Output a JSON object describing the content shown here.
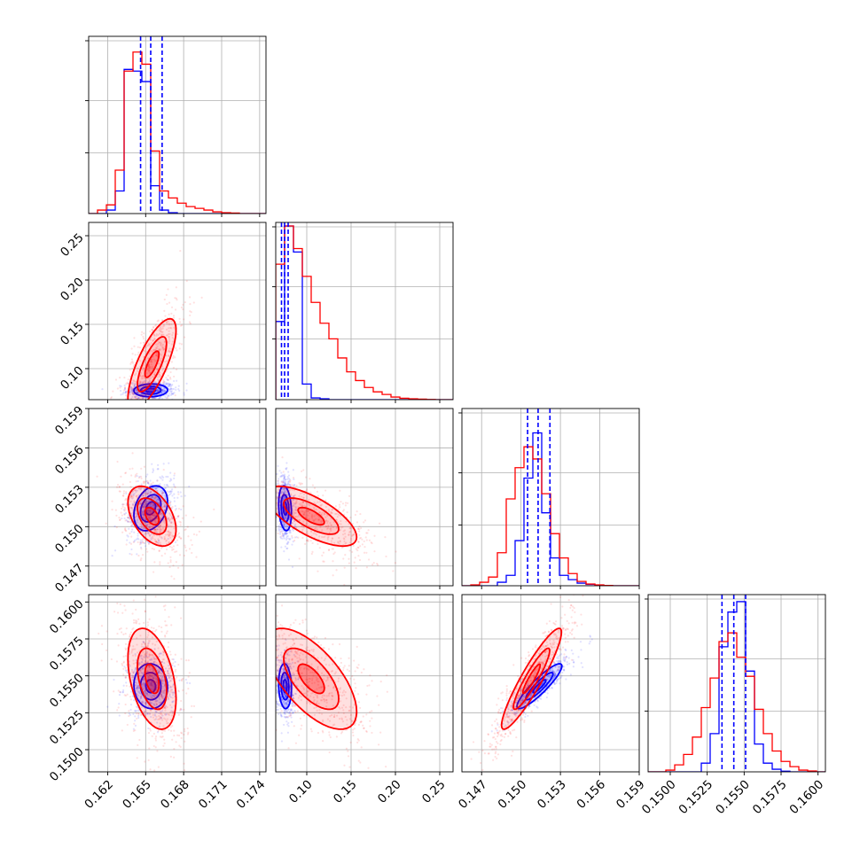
{
  "chart_data": {
    "type": "corner",
    "n_params": 4,
    "grid": "on",
    "series": [
      {
        "name": "",
        "color": "#0000ff"
      },
      {
        "name": "",
        "color": "#ff0000"
      }
    ],
    "params": [
      {
        "range": [
          0.1605,
          0.1745
        ],
        "ticks": [
          "0.162",
          "0.165",
          "0.168",
          "0.171",
          "0.174"
        ],
        "tick_values": [
          0.162,
          0.165,
          0.168,
          0.171,
          0.174
        ]
      },
      {
        "range": [
          0.065,
          0.265
        ],
        "ticks": [
          "0.10",
          "0.15",
          "0.20",
          "0.25"
        ],
        "tick_values": [
          0.1,
          0.15,
          0.2,
          0.25
        ]
      },
      {
        "range": [
          0.1455,
          0.159
        ],
        "ticks": [
          "0.147",
          "0.150",
          "0.153",
          "0.156",
          "0.159"
        ],
        "tick_values": [
          0.147,
          0.15,
          0.153,
          0.156,
          0.159
        ]
      },
      {
        "range": [
          0.1485,
          0.1605
        ],
        "ticks": [
          "0.1500",
          "0.1525",
          "0.1550",
          "0.1575",
          "0.1600"
        ],
        "tick_values": [
          0.15,
          0.1525,
          0.155,
          0.1575,
          0.16
        ]
      }
    ],
    "quantiles_blue": [
      [
        0.1646,
        0.1654,
        0.1663
      ],
      [
        0.0715,
        0.075,
        0.079
      ],
      [
        0.1505,
        0.1513,
        0.1522
      ],
      [
        0.1535,
        0.1543,
        0.1551
      ]
    ],
    "hist_blue": [
      [
        0.0,
        0.0,
        0.02,
        0.13,
        0.83,
        0.82,
        0.76,
        0.16,
        0.02,
        0.005,
        0,
        0,
        0,
        0,
        0,
        0,
        0,
        0,
        0,
        0
      ],
      [
        0.45,
        1.0,
        0.85,
        0.09,
        0.01,
        0.005,
        0,
        0,
        0,
        0,
        0,
        0,
        0,
        0,
        0,
        0,
        0,
        0,
        0,
        0
      ],
      [
        0,
        0,
        0,
        0,
        0.02,
        0.06,
        0.26,
        0.62,
        0.88,
        0.42,
        0.16,
        0.06,
        0.035,
        0.015,
        0.008,
        0.004,
        0.002,
        0,
        0,
        0
      ],
      [
        0,
        0,
        0,
        0,
        0,
        0,
        0.05,
        0.22,
        0.72,
        0.92,
        0.98,
        0.58,
        0.16,
        0.05,
        0.015,
        0.004,
        0,
        0,
        0,
        0
      ]
    ],
    "hist_red": [
      [
        0.0,
        0.02,
        0.05,
        0.25,
        0.82,
        0.93,
        0.86,
        0.36,
        0.13,
        0.09,
        0.06,
        0.04,
        0.03,
        0.02,
        0.01,
        0.005,
        0.003,
        0,
        0,
        0
      ],
      [
        0.78,
        1.0,
        0.87,
        0.71,
        0.56,
        0.44,
        0.35,
        0.24,
        0.16,
        0.11,
        0.07,
        0.045,
        0.03,
        0.015,
        0.008,
        0.005,
        0.003,
        0.001,
        0,
        0
      ],
      [
        0,
        0.005,
        0.02,
        0.05,
        0.19,
        0.5,
        0.68,
        0.8,
        0.73,
        0.53,
        0.3,
        0.16,
        0.07,
        0.025,
        0.01,
        0.005,
        0.002,
        0,
        0,
        0
      ],
      [
        0,
        0,
        0.01,
        0.04,
        0.1,
        0.2,
        0.37,
        0.54,
        0.75,
        0.8,
        0.66,
        0.55,
        0.36,
        0.22,
        0.12,
        0.06,
        0.03,
        0.01,
        0.005,
        0
      ]
    ],
    "stats": {
      "blue": {
        "mean": [
          0.1654,
          0.0755,
          0.1514,
          0.1543
        ],
        "sd": [
          0.0007,
          0.0038,
          0.0009,
          0.0008
        ],
        "corr": {
          "1_0": 0.05,
          "2_0": 0.3,
          "2_1": -0.2,
          "3_0": -0.05,
          "3_1": -0.1,
          "3_2": 0.9
        }
      },
      "red": {
        "mean": [
          0.1655,
          0.105,
          0.1508,
          0.1548
        ],
        "sd": [
          0.001,
          0.027,
          0.0012,
          0.0018
        ],
        "corr": {
          "1_0": 0.75,
          "2_0": -0.45,
          "2_1": -0.7,
          "3_0": -0.4,
          "3_1": -0.65,
          "3_2": 0.92
        }
      }
    }
  }
}
